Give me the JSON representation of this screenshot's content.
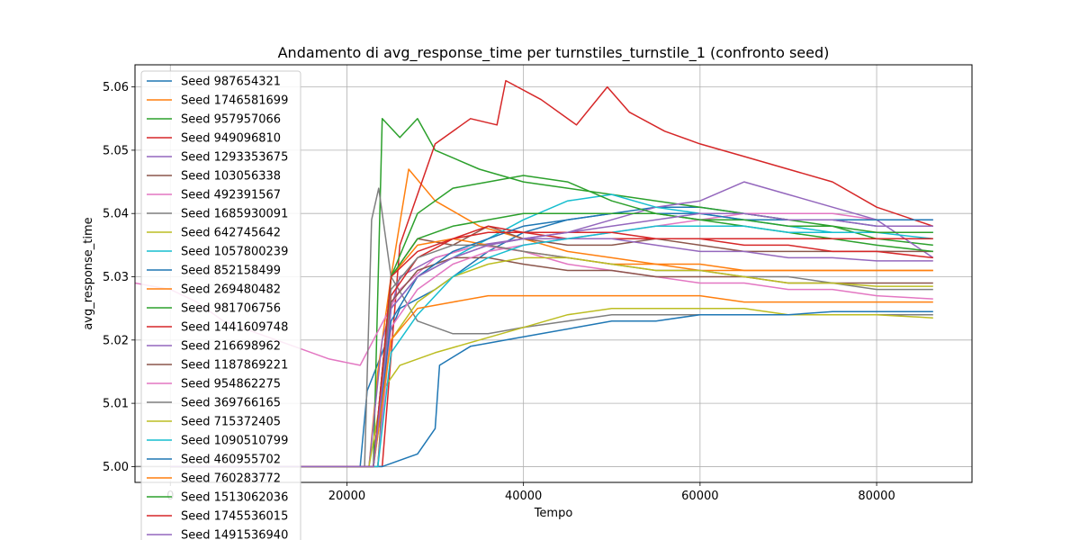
{
  "chart_data": {
    "type": "line",
    "title": "Andamento di avg_response_time per turnstiles_turnstile_1 (confronto seed)",
    "xlabel": "Tempo",
    "ylabel": "avg_response_time",
    "xlim": [
      -4000,
      90800
    ],
    "ylim": [
      4.9975,
      5.0635
    ],
    "xticks": [
      0,
      20000,
      40000,
      60000,
      80000
    ],
    "xtick_labels": [
      "0",
      "20000",
      "40000",
      "60000",
      "80000"
    ],
    "yticks": [
      5.0,
      5.01,
      5.02,
      5.03,
      5.04,
      5.05,
      5.06
    ],
    "ytick_labels": [
      "5.00",
      "5.01",
      "5.02",
      "5.03",
      "5.04",
      "5.05",
      "5.06"
    ],
    "grid": true,
    "legend_position": "upper-left",
    "series": [
      {
        "name": "Seed 987654321",
        "color": "#1f77b4",
        "x": [
          0,
          21500,
          22300,
          24000,
          26000,
          30000,
          33000,
          36000,
          40000,
          45000,
          50000,
          55000,
          60000,
          65000,
          70000,
          75000,
          80000,
          86400
        ],
        "y": [
          5.0,
          5.0,
          5.012,
          5.018,
          5.025,
          5.028,
          5.031,
          5.034,
          5.037,
          5.039,
          5.04,
          5.041,
          5.041,
          5.04,
          5.039,
          5.039,
          5.038,
          5.038
        ]
      },
      {
        "name": "Seed 1746581699",
        "color": "#ff7f0e",
        "x": [
          0,
          22500,
          23500,
          25000,
          27000,
          30000,
          35000,
          40000,
          45000,
          50000,
          55000,
          60000,
          65000,
          70000,
          75000,
          80000,
          86400
        ],
        "y": [
          5.0,
          5.0,
          5.015,
          5.03,
          5.047,
          5.042,
          5.038,
          5.036,
          5.034,
          5.033,
          5.032,
          5.032,
          5.031,
          5.031,
          5.031,
          5.031,
          5.031
        ]
      },
      {
        "name": "Seed 957957066",
        "color": "#2ca02c",
        "x": [
          0,
          23000,
          24000,
          26000,
          28000,
          30000,
          35000,
          40000,
          45000,
          50000,
          55000,
          60000,
          65000,
          70000,
          75000,
          80000,
          86400
        ],
        "y": [
          5.0,
          5.0,
          5.055,
          5.052,
          5.055,
          5.05,
          5.047,
          5.045,
          5.044,
          5.043,
          5.042,
          5.041,
          5.04,
          5.039,
          5.038,
          5.036,
          5.035
        ]
      },
      {
        "name": "Seed 949096810",
        "color": "#d62728",
        "x": [
          0,
          24000,
          26000,
          30000,
          34000,
          37000,
          38000,
          42000,
          46000,
          49500,
          52000,
          56000,
          60000,
          65000,
          70000,
          75000,
          80000,
          86400
        ],
        "y": [
          5.0,
          5.0,
          5.035,
          5.051,
          5.055,
          5.054,
          5.061,
          5.058,
          5.054,
          5.06,
          5.056,
          5.053,
          5.051,
          5.049,
          5.047,
          5.045,
          5.041,
          5.038
        ]
      },
      {
        "name": "Seed 1293353675",
        "color": "#9467bd",
        "x": [
          0,
          22500,
          24000,
          26000,
          30000,
          35000,
          40000,
          45000,
          50000,
          55000,
          60000,
          65000,
          70000,
          75000,
          80000,
          86400
        ],
        "y": [
          5.0,
          5.0,
          5.02,
          5.03,
          5.033,
          5.035,
          5.036,
          5.037,
          5.039,
          5.041,
          5.042,
          5.045,
          5.043,
          5.041,
          5.039,
          5.033
        ]
      },
      {
        "name": "Seed 103056338",
        "color": "#8c564b",
        "x": [
          0,
          23000,
          25000,
          28000,
          32000,
          36000,
          40000,
          45000,
          50000,
          55000,
          60000,
          65000,
          70000,
          75000,
          80000,
          86400
        ],
        "y": [
          5.0,
          5.0,
          5.03,
          5.036,
          5.035,
          5.038,
          5.036,
          5.035,
          5.035,
          5.036,
          5.035,
          5.034,
          5.034,
          5.034,
          5.034,
          5.034
        ]
      },
      {
        "name": "Seed 492391567",
        "color": "#e377c2",
        "x": [
          -4000,
          0,
          3000,
          6000,
          10000,
          14000,
          18000,
          21500,
          23000,
          26000,
          30000,
          35000,
          40000,
          45000,
          50000,
          55000,
          60000,
          65000,
          70000,
          75000,
          80000,
          86400
        ],
        "y": [
          5.029,
          5.028,
          5.026,
          5.023,
          5.021,
          5.019,
          5.017,
          5.016,
          5.02,
          5.028,
          5.033,
          5.035,
          5.034,
          5.032,
          5.031,
          5.03,
          5.029,
          5.029,
          5.028,
          5.028,
          5.027,
          5.0265
        ]
      },
      {
        "name": "Seed 1685930091",
        "color": "#7f7f7f",
        "x": [
          -4000,
          22000,
          22800,
          23600,
          25000,
          28000,
          32000,
          36000,
          40000,
          45000,
          50000,
          55000,
          60000,
          65000,
          70000,
          75000,
          80000,
          86400
        ],
        "y": [
          5.0,
          5.0,
          5.039,
          5.044,
          5.03,
          5.023,
          5.021,
          5.021,
          5.022,
          5.023,
          5.024,
          5.024,
          5.024,
          5.024,
          5.024,
          5.024,
          5.024,
          5.024
        ]
      },
      {
        "name": "Seed 642745642",
        "color": "#bcbd22",
        "x": [
          0,
          22500,
          24000,
          26000,
          30000,
          35000,
          40000,
          45000,
          50000,
          55000,
          60000,
          65000,
          70000,
          75000,
          80000,
          86400
        ],
        "y": [
          5.0,
          5.0,
          5.012,
          5.016,
          5.018,
          5.02,
          5.022,
          5.024,
          5.025,
          5.025,
          5.025,
          5.025,
          5.024,
          5.024,
          5.024,
          5.0235
        ]
      },
      {
        "name": "Seed 1057800239",
        "color": "#17becf",
        "x": [
          0,
          23000,
          25000,
          28000,
          32000,
          36000,
          40000,
          45000,
          50000,
          55000,
          60000,
          65000,
          70000,
          75000,
          80000,
          86400
        ],
        "y": [
          5.0,
          5.0,
          5.025,
          5.03,
          5.033,
          5.036,
          5.039,
          5.042,
          5.043,
          5.041,
          5.04,
          5.039,
          5.038,
          5.037,
          5.037,
          5.036
        ]
      },
      {
        "name": "Seed 852158499",
        "color": "#1f77b4",
        "x": [
          0,
          24000,
          28000,
          30000,
          30500,
          34000,
          38000,
          42000,
          46000,
          50000,
          55000,
          60000,
          65000,
          70000,
          75000,
          80000,
          86400
        ],
        "y": [
          5.0,
          5.0,
          5.002,
          5.006,
          5.016,
          5.019,
          5.02,
          5.021,
          5.022,
          5.023,
          5.023,
          5.024,
          5.024,
          5.024,
          5.0245,
          5.0245,
          5.0245
        ]
      },
      {
        "name": "Seed 269480482",
        "color": "#ff7f0e",
        "x": [
          0,
          23500,
          25000,
          28000,
          32000,
          36000,
          40000,
          45000,
          50000,
          55000,
          60000,
          65000,
          70000,
          75000,
          80000,
          86400
        ],
        "y": [
          5.0,
          5.0,
          5.03,
          5.035,
          5.036,
          5.035,
          5.034,
          5.033,
          5.032,
          5.032,
          5.031,
          5.031,
          5.031,
          5.031,
          5.031,
          5.031
        ]
      },
      {
        "name": "Seed 981706756",
        "color": "#2ca02c",
        "x": [
          0,
          23500,
          25000,
          28000,
          32000,
          36000,
          40000,
          45000,
          50000,
          55000,
          60000,
          65000,
          70000,
          75000,
          80000,
          86400
        ],
        "y": [
          5.0,
          5.0,
          5.03,
          5.04,
          5.044,
          5.045,
          5.046,
          5.045,
          5.042,
          5.04,
          5.039,
          5.038,
          5.037,
          5.036,
          5.035,
          5.034
        ]
      },
      {
        "name": "Seed 1441609748",
        "color": "#d62728",
        "x": [
          0,
          23000,
          25000,
          28000,
          32000,
          36000,
          40000,
          45000,
          50000,
          55000,
          60000,
          65000,
          70000,
          75000,
          80000,
          86400
        ],
        "y": [
          5.0,
          5.0,
          5.027,
          5.033,
          5.036,
          5.038,
          5.037,
          5.036,
          5.036,
          5.036,
          5.036,
          5.036,
          5.036,
          5.036,
          5.036,
          5.036
        ]
      },
      {
        "name": "Seed 216698962",
        "color": "#9467bd",
        "x": [
          0,
          23500,
          25000,
          28000,
          32000,
          36000,
          40000,
          45000,
          50000,
          55000,
          60000,
          65000,
          70000,
          75000,
          80000,
          86400
        ],
        "y": [
          5.0,
          5.0,
          5.025,
          5.03,
          5.033,
          5.035,
          5.036,
          5.036,
          5.036,
          5.035,
          5.034,
          5.034,
          5.033,
          5.033,
          5.0325,
          5.0325
        ]
      },
      {
        "name": "Seed 1187869221",
        "color": "#8c564b",
        "x": [
          0,
          23000,
          25000,
          28000,
          32000,
          36000,
          40000,
          45000,
          50000,
          55000,
          60000,
          65000,
          70000,
          75000,
          80000,
          86400
        ],
        "y": [
          5.0,
          5.0,
          5.026,
          5.031,
          5.033,
          5.033,
          5.032,
          5.031,
          5.031,
          5.03,
          5.03,
          5.03,
          5.029,
          5.029,
          5.029,
          5.029
        ]
      },
      {
        "name": "Seed 954862275",
        "color": "#e377c2",
        "x": [
          0,
          23500,
          25000,
          28000,
          32000,
          36000,
          40000,
          45000,
          50000,
          55000,
          60000,
          65000,
          70000,
          75000,
          80000,
          86400
        ],
        "y": [
          5.0,
          5.0,
          5.022,
          5.028,
          5.032,
          5.034,
          5.035,
          5.036,
          5.037,
          5.038,
          5.039,
          5.04,
          5.04,
          5.04,
          5.039,
          5.039
        ]
      },
      {
        "name": "Seed 369766165",
        "color": "#7f7f7f",
        "x": [
          0,
          23000,
          25000,
          28000,
          32000,
          36000,
          40000,
          45000,
          50000,
          55000,
          60000,
          65000,
          70000,
          75000,
          80000,
          86400
        ],
        "y": [
          5.0,
          5.0,
          5.028,
          5.033,
          5.035,
          5.035,
          5.034,
          5.033,
          5.032,
          5.031,
          5.031,
          5.03,
          5.03,
          5.029,
          5.028,
          5.028
        ]
      },
      {
        "name": "Seed 715372405",
        "color": "#bcbd22",
        "x": [
          0,
          23000,
          25000,
          28000,
          32000,
          36000,
          40000,
          45000,
          50000,
          55000,
          60000,
          65000,
          70000,
          75000,
          80000,
          86400
        ],
        "y": [
          5.0,
          5.0,
          5.02,
          5.026,
          5.03,
          5.032,
          5.033,
          5.033,
          5.032,
          5.031,
          5.031,
          5.03,
          5.029,
          5.029,
          5.0285,
          5.0285
        ]
      },
      {
        "name": "Seed 1090510799",
        "color": "#17becf",
        "x": [
          0,
          23500,
          25000,
          28000,
          32000,
          36000,
          40000,
          45000,
          50000,
          55000,
          60000,
          65000,
          70000,
          75000,
          80000,
          86400
        ],
        "y": [
          5.0,
          5.0,
          5.018,
          5.024,
          5.03,
          5.033,
          5.035,
          5.036,
          5.037,
          5.038,
          5.038,
          5.038,
          5.037,
          5.037,
          5.037,
          5.037
        ]
      },
      {
        "name": "Seed 460955702",
        "color": "#1f77b4",
        "x": [
          0,
          23000,
          25000,
          28000,
          32000,
          36000,
          40000,
          45000,
          50000,
          55000,
          60000,
          65000,
          70000,
          75000,
          80000,
          86400
        ],
        "y": [
          5.0,
          5.0,
          5.023,
          5.03,
          5.034,
          5.036,
          5.038,
          5.039,
          5.04,
          5.04,
          5.04,
          5.039,
          5.039,
          5.039,
          5.039,
          5.039
        ]
      },
      {
        "name": "Seed 760283772",
        "color": "#ff7f0e",
        "x": [
          0,
          23000,
          25000,
          28000,
          32000,
          36000,
          40000,
          45000,
          50000,
          55000,
          60000,
          65000,
          70000,
          75000,
          80000,
          86400
        ],
        "y": [
          5.0,
          5.0,
          5.02,
          5.025,
          5.026,
          5.027,
          5.027,
          5.027,
          5.027,
          5.027,
          5.027,
          5.026,
          5.026,
          5.026,
          5.026,
          5.026
        ]
      },
      {
        "name": "Seed 1513062036",
        "color": "#2ca02c",
        "x": [
          0,
          23000,
          25000,
          28000,
          32000,
          36000,
          40000,
          45000,
          50000,
          55000,
          60000,
          65000,
          70000,
          75000,
          80000,
          86400
        ],
        "y": [
          5.0,
          5.0,
          5.03,
          5.036,
          5.038,
          5.039,
          5.04,
          5.04,
          5.04,
          5.04,
          5.039,
          5.039,
          5.038,
          5.038,
          5.037,
          5.037
        ]
      },
      {
        "name": "Seed 1745536015",
        "color": "#d62728",
        "x": [
          0,
          23000,
          25000,
          28000,
          32000,
          36000,
          40000,
          45000,
          50000,
          55000,
          60000,
          65000,
          70000,
          75000,
          80000,
          86400
        ],
        "y": [
          5.0,
          5.0,
          5.03,
          5.034,
          5.036,
          5.037,
          5.037,
          5.037,
          5.037,
          5.036,
          5.036,
          5.035,
          5.035,
          5.034,
          5.034,
          5.033
        ]
      },
      {
        "name": "Seed 1491536940",
        "color": "#9467bd",
        "x": [
          0,
          23000,
          25000,
          28000,
          32000,
          36000,
          40000,
          45000,
          50000,
          55000,
          60000,
          65000,
          70000,
          75000,
          80000,
          86400
        ],
        "y": [
          5.0,
          5.0,
          5.025,
          5.03,
          5.033,
          5.035,
          5.036,
          5.037,
          5.038,
          5.039,
          5.04,
          5.04,
          5.039,
          5.039,
          5.038,
          5.038
        ]
      }
    ]
  }
}
